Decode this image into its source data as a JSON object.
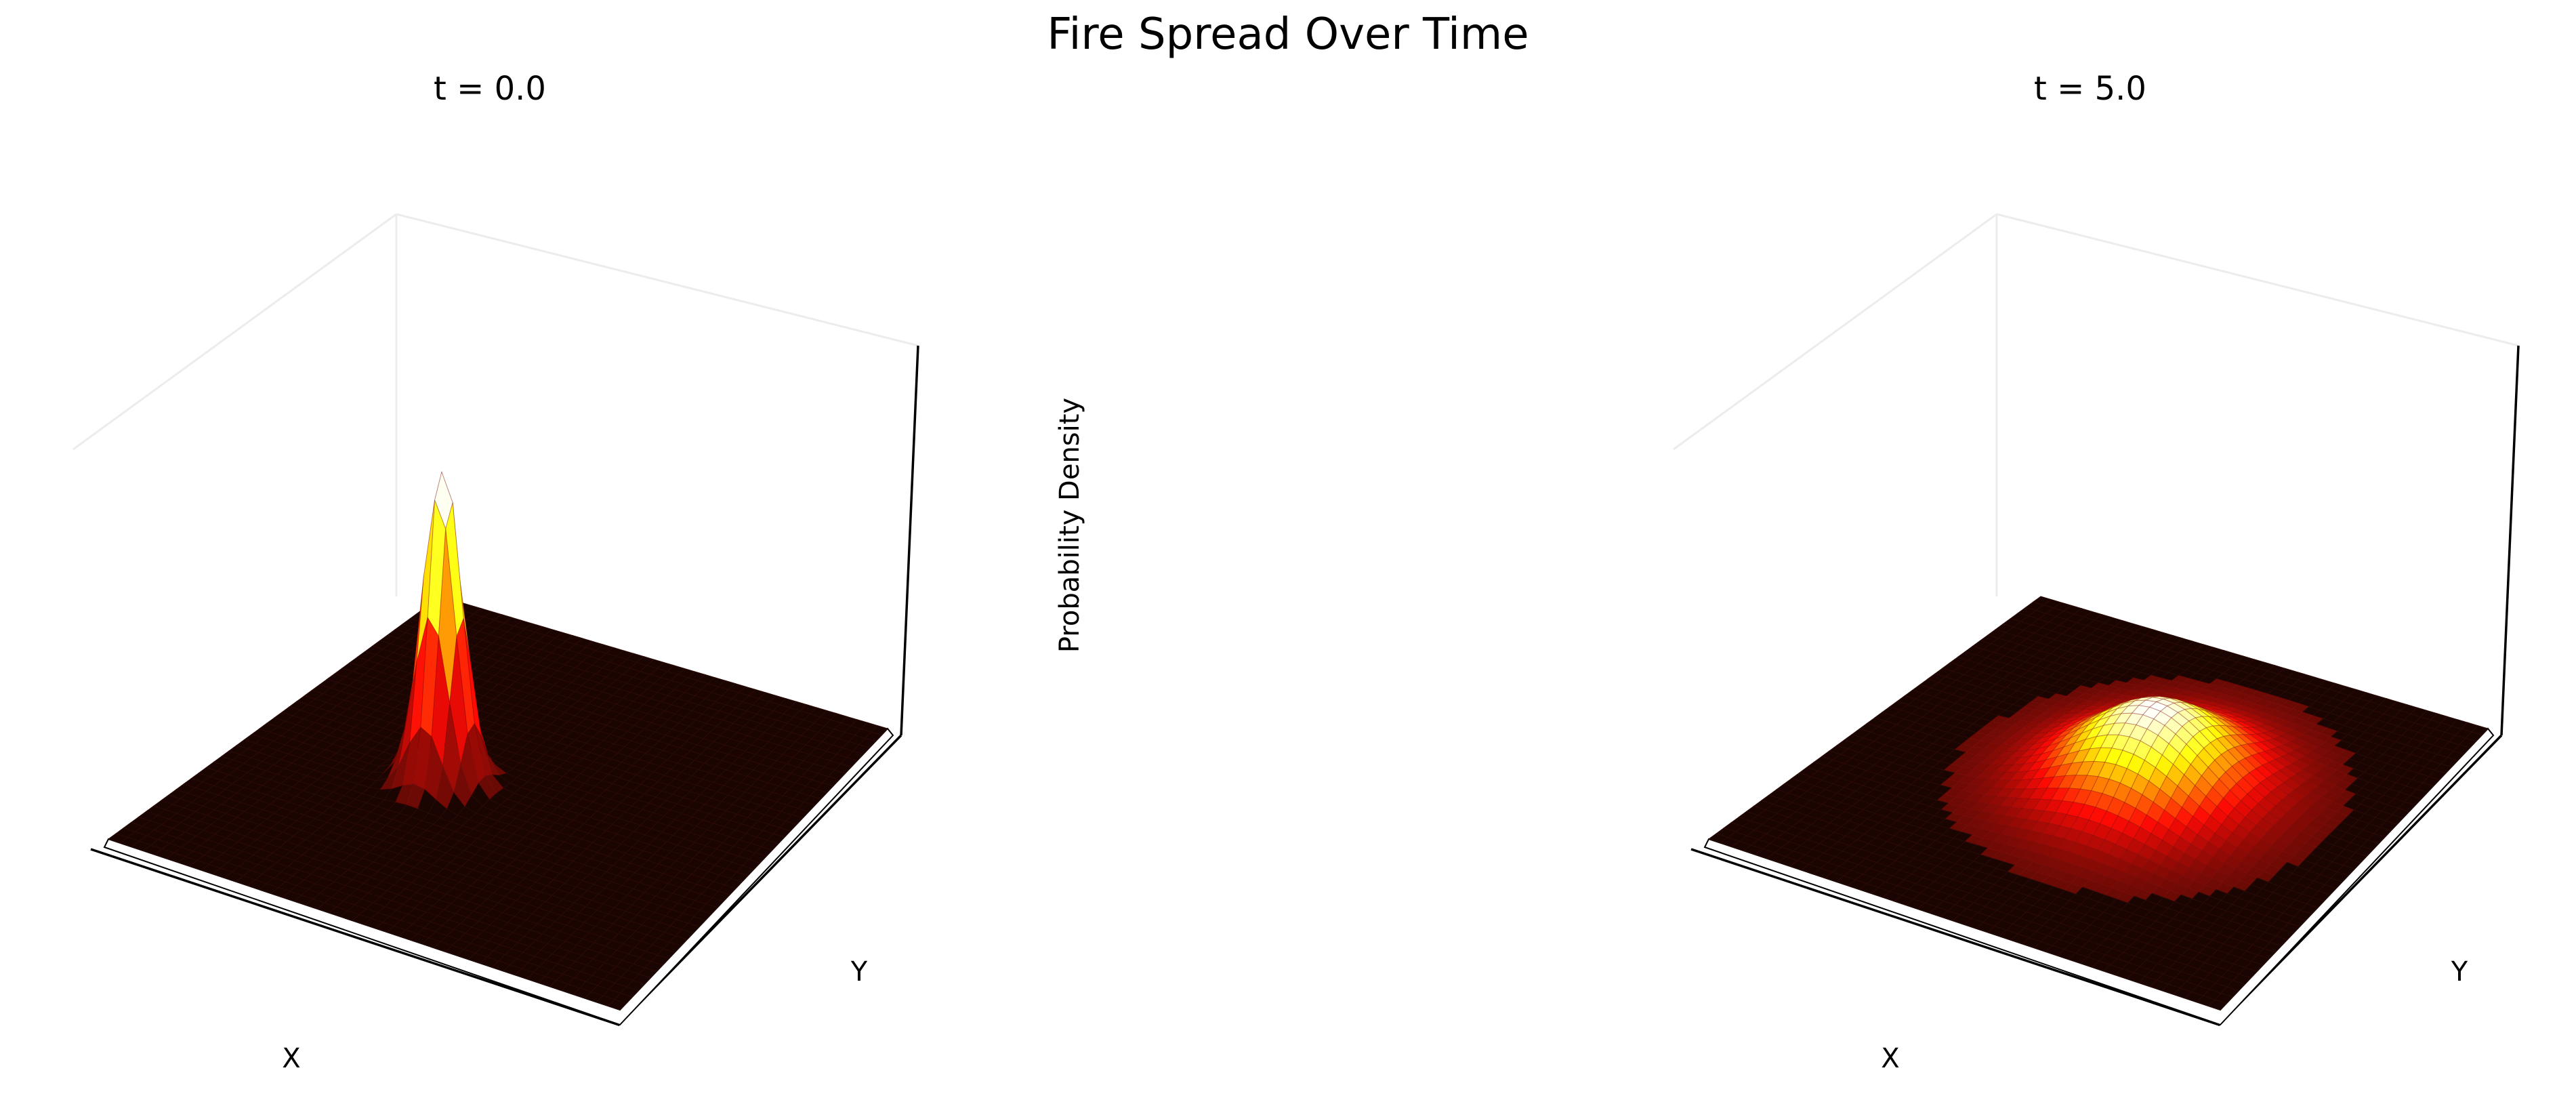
{
  "figure": {
    "title": "Fire Spread Over Time"
  },
  "chart_data": [
    {
      "type": "surface",
      "title": "t = 0.0",
      "xlabel": "X",
      "ylabel": "Y",
      "zlabel": "",
      "colormap": "hot",
      "surface": {
        "shape": "narrow peak",
        "peak_density": 1.0,
        "spread": "narrow",
        "center": [
          0.37,
          0.47
        ]
      }
    },
    {
      "type": "surface",
      "title": "t = 5.0",
      "xlabel": "X",
      "ylabel": "Y",
      "zlabel": "",
      "colormap": "hot",
      "surface": {
        "shape": "broad mound",
        "peak_density": 0.12,
        "spread": "wide",
        "center": [
          0.55,
          0.55
        ]
      }
    }
  ],
  "shared": {
    "zlabel": "Probability Density"
  }
}
